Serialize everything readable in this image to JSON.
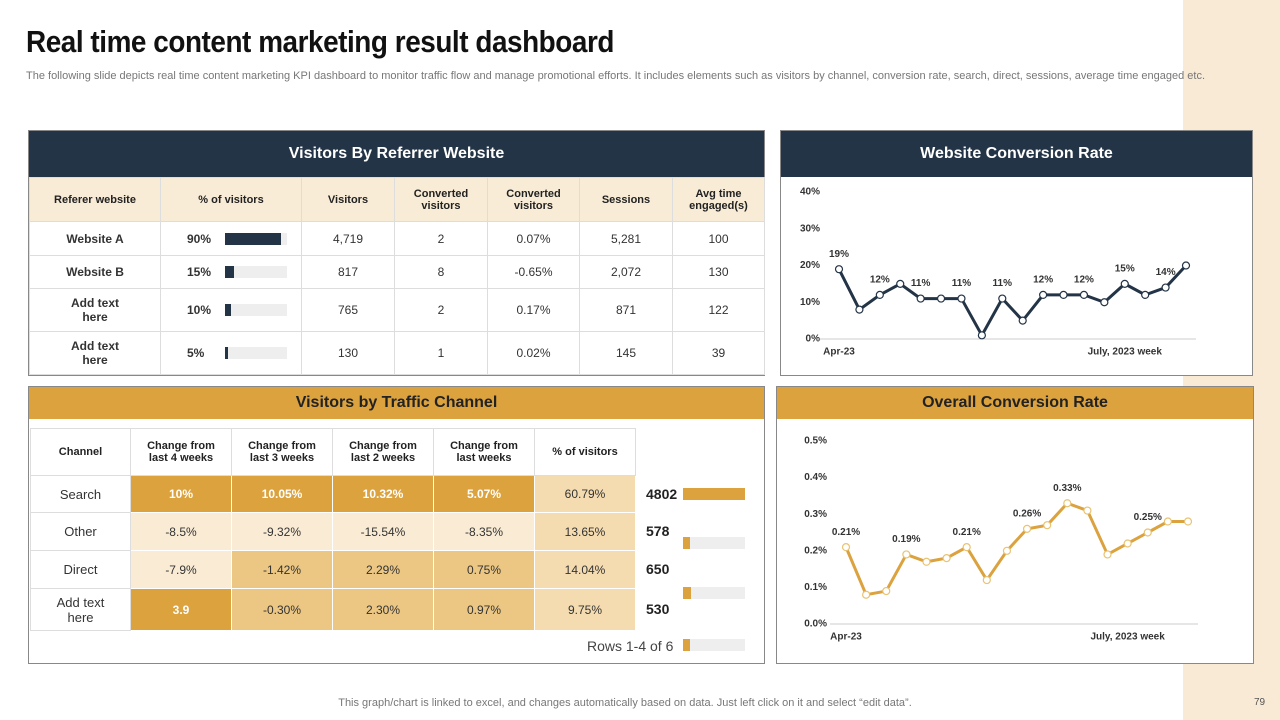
{
  "header": {
    "title": "Real time content marketing result dashboard",
    "subtitle": "The following slide depicts real time content marketing KPI dashboard to monitor traffic flow and manage promotional efforts. It includes elements such as visitors by channel, conversion rate, search, direct, sessions, average time engaged etc."
  },
  "referrer": {
    "title": "Visitors By Referrer Website",
    "columns": [
      "Referer website",
      "% of visitors",
      "Visitors",
      "Converted visitors",
      "Converted visitors",
      "Sessions",
      "Avg time engaged(s)"
    ],
    "rows": [
      [
        "Website A",
        "90%",
        "4,719",
        "2",
        "0.07%",
        "5,281",
        "100"
      ],
      [
        "Website B",
        "15%",
        "817",
        "8",
        "-0.65%",
        "2,072",
        "130"
      ],
      [
        "Add text here",
        "10%",
        "765",
        "2",
        "0.17%",
        "871",
        "122"
      ],
      [
        "Add text here",
        "5%",
        "130",
        "1",
        "0.02%",
        "145",
        "39"
      ]
    ],
    "pct_values": [
      90,
      15,
      10,
      5
    ],
    "bar_color": "#243447"
  },
  "traffic": {
    "title": "Visitors by Traffic Channel",
    "columns": [
      "Channel",
      "Change from last 4 weeks",
      "Change from last 3 weeks",
      "Change from last 2 weeks",
      "Change from last  weeks",
      "% of visitors"
    ],
    "rows": [
      [
        "Search",
        "10%",
        "10.05%",
        "10.32%",
        "5.07%",
        "60.79%"
      ],
      [
        "Other",
        "-8.5%",
        "-9.32%",
        "-15.54%",
        "-8.35%",
        "13.65%"
      ],
      [
        "Direct",
        "-7.9%",
        "-1.42%",
        "2.29%",
        "0.75%",
        "14.04%"
      ],
      [
        "Add text here",
        "3.9",
        "-0.30%",
        "2.30%",
        "0.97%",
        "9.75%"
      ]
    ],
    "cell_colors": [
      [
        "#ffffff",
        "#dba23e",
        "#dba23e",
        "#dba23e",
        "#dba23e",
        "#f5dcb0"
      ],
      [
        "#ffffff",
        "#faecd4",
        "#faecd4",
        "#faecd4",
        "#faecd4",
        "#f5dcb0"
      ],
      [
        "#ffffff",
        "#faecd4",
        "#ecc784",
        "#ecc784",
        "#ecc784",
        "#f5dcb0"
      ],
      [
        "#ffffff",
        "#dba23e",
        "#ecc784",
        "#ecc784",
        "#ecc784",
        "#f5dcb0"
      ]
    ],
    "visitor_counts": [
      4802,
      578,
      650,
      530
    ],
    "bar_color": "#dba23e",
    "pagination": "Rows 1-4 of 6"
  },
  "chart_data": [
    {
      "type": "line",
      "title": "Website Conversion Rate",
      "color": "#243447",
      "categories": [
        "Apr-23",
        null,
        null,
        null,
        null,
        null,
        null,
        null,
        null,
        null,
        null,
        null,
        null,
        null,
        "July, 2023 week",
        null,
        null,
        null
      ],
      "values": [
        19,
        8,
        12,
        15,
        11,
        11,
        11,
        1,
        11,
        5,
        12,
        12,
        12,
        10,
        15,
        12,
        14,
        20
      ],
      "value_labels": [
        "19%",
        null,
        "12%",
        null,
        "11%",
        null,
        "11%",
        null,
        "11%",
        null,
        "12%",
        null,
        "12%",
        null,
        "15%",
        null,
        "14%",
        null
      ],
      "ylim": [
        0,
        40
      ],
      "yticks": [
        {
          "value": 0,
          "label": "0%"
        },
        {
          "value": 10,
          "label": "10%"
        },
        {
          "value": 20,
          "label": "20%"
        },
        {
          "value": 30,
          "label": "30%"
        },
        {
          "value": 40,
          "label": "40%"
        }
      ]
    },
    {
      "type": "line",
      "title": "Overall Conversion Rate",
      "color": "#dba23e",
      "categories": [
        "Apr-23",
        null,
        null,
        null,
        null,
        null,
        null,
        null,
        null,
        null,
        null,
        null,
        null,
        null,
        "July, 2023 week",
        null,
        null,
        null
      ],
      "values": [
        0.21,
        0.08,
        0.09,
        0.19,
        0.17,
        0.18,
        0.21,
        0.12,
        0.2,
        0.26,
        0.27,
        0.33,
        0.31,
        0.19,
        0.22,
        0.25,
        0.28,
        0.28
      ],
      "value_labels": [
        "0.21%",
        null,
        null,
        "0.19%",
        null,
        null,
        "0.21%",
        null,
        null,
        "0.26%",
        null,
        "0.33%",
        null,
        null,
        null,
        "0.25%",
        null,
        null
      ],
      "ylim": [
        0,
        0.5
      ],
      "yticks": [
        {
          "value": 0,
          "label": "0.0%"
        },
        {
          "value": 0.1,
          "label": "0.1%"
        },
        {
          "value": 0.2,
          "label": "0.2%"
        },
        {
          "value": 0.3,
          "label": "0.3%"
        },
        {
          "value": 0.4,
          "label": "0.4%"
        },
        {
          "value": 0.5,
          "label": "0.5%"
        }
      ]
    }
  ],
  "footer": "This graph/chart is linked to excel,  and changes automatically based on data. Just left click on it and select “edit data”.",
  "page_number": "79"
}
